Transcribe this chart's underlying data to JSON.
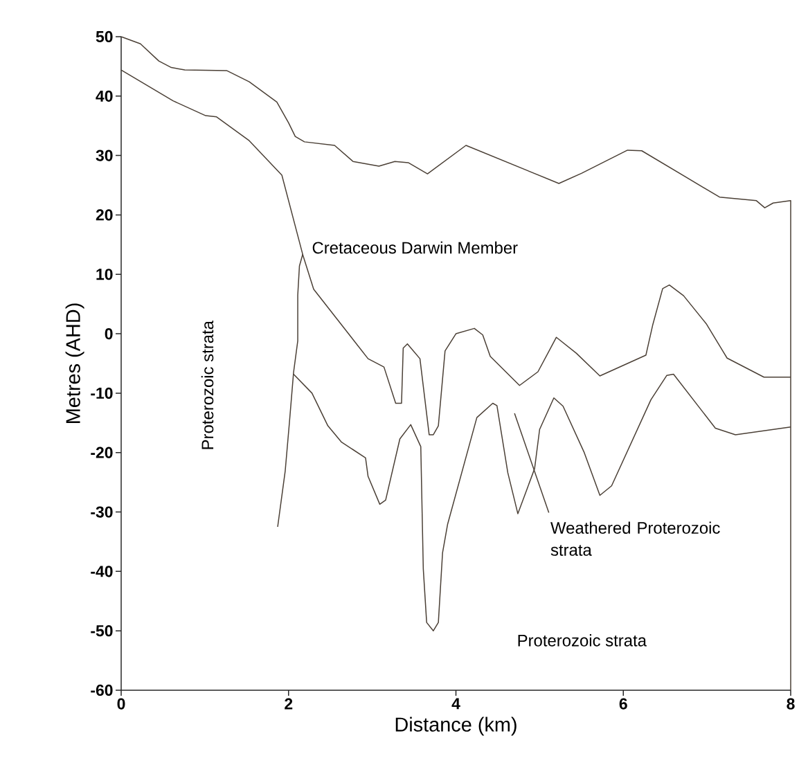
{
  "chart_data": {
    "type": "line",
    "xlabel": "Distance (km)",
    "ylabel": "Metres (AHD)",
    "xlim": [
      0,
      8
    ],
    "ylim": [
      -60,
      50
    ],
    "xticks": [
      0,
      2,
      4,
      6,
      8
    ],
    "yticks": [
      -60,
      -50,
      -40,
      -30,
      -20,
      -10,
      0,
      10,
      20,
      30,
      40,
      50
    ],
    "grid": false,
    "line_style": "solid",
    "annotations": [
      "Cretaceous Darwin Member",
      "Proterozoic strata",
      "Weathered Proterozoic strata",
      "Proterozoic strata"
    ],
    "series": [
      {
        "color": "#4a3f35",
        "x": [
          0,
          0.23,
          0.45,
          0.6,
          0.76,
          1.26,
          1.53,
          1.86,
          2.0,
          2.08,
          2.19,
          2.55,
          2.77,
          3.08,
          3.27,
          3.43,
          3.66,
          4.12,
          5.23,
          5.5,
          6.05,
          6.22,
          7.15,
          7.59,
          7.69,
          7.79,
          8,
          8
        ],
        "values": [
          50,
          48.8,
          45.9,
          44.8,
          44.4,
          44.3,
          42.4,
          39,
          35.5,
          33.2,
          32.3,
          31.7,
          29,
          28.2,
          29,
          28.8,
          26.9,
          31.7,
          25.3,
          27,
          30.9,
          30.8,
          23,
          22.4,
          21.2,
          22,
          22.4,
          -60
        ]
      },
      {
        "color": "#4a3f35",
        "x": [
          0,
          0.62,
          1.01,
          1.14,
          1.53,
          1.92,
          2.17,
          2.3,
          2.95,
          3.14,
          3.28,
          3.35,
          3.37,
          3.42,
          3.57,
          3.68,
          3.73,
          3.79,
          3.87,
          4.0,
          4.22,
          4.32,
          4.41,
          4.76,
          4.98,
          5.2,
          5.44,
          5.72,
          6.27,
          6.35,
          6.47,
          6.55,
          6.72,
          6.99,
          7.24,
          7.68,
          8.0
        ],
        "values": [
          44.4,
          39.2,
          36.7,
          36.5,
          32.5,
          26.7,
          13.3,
          7.5,
          -4.2,
          -5.6,
          -11.7,
          -11.7,
          -2.4,
          -1.7,
          -4.2,
          -17,
          -17,
          -15.5,
          -2.9,
          0,
          0.9,
          -0.2,
          -3.8,
          -8.7,
          -6.4,
          -0.6,
          -3.3,
          -7.1,
          -3.6,
          1.4,
          7.6,
          8.2,
          6.4,
          1.7,
          -4.1,
          -7.3,
          -7.3
        ]
      },
      {
        "color": "#4a3f35",
        "x": [
          2.06,
          2.28,
          2.47,
          2.63,
          2.92,
          2.95,
          3.09,
          3.16,
          3.33,
          3.46,
          3.58,
          3.61,
          3.65,
          3.73,
          3.79,
          3.84,
          3.9,
          4.25,
          4.44,
          4.49,
          4.62,
          4.74,
          4.94,
          5.0,
          5.17,
          5.28,
          5.53,
          5.72,
          5.86,
          6.33,
          6.52,
          6.6,
          7.1,
          7.34,
          8.0
        ],
        "values": [
          -6.8,
          -10,
          -15.5,
          -18.2,
          -20.9,
          -24,
          -28.7,
          -28,
          -17.7,
          -15.3,
          -19,
          -39.6,
          -48.6,
          -50,
          -48.6,
          -36.9,
          -32.1,
          -14.1,
          -11.7,
          -12.1,
          -23.4,
          -30.3,
          -22.7,
          -16.1,
          -10.8,
          -12.2,
          -19.9,
          -27.2,
          -25.6,
          -11.1,
          -7,
          -6.8,
          -15.9,
          -17,
          -15.7
        ]
      },
      {
        "color": "#4a3f35",
        "x": [
          1.87,
          1.96,
          2.01,
          2.06,
          2.11,
          2.11,
          2.13,
          2.17
        ],
        "values": [
          -32.5,
          -23.1,
          -15,
          -6.5,
          -1.2,
          6.5,
          11.4,
          13.4
        ]
      },
      {
        "color": "#4a3f35",
        "x": [
          4.7,
          5.11
        ],
        "values": [
          -13.4,
          -30.1
        ]
      }
    ]
  }
}
